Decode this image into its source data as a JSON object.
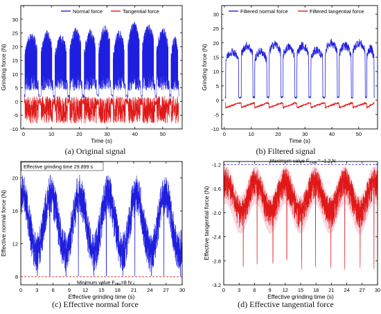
{
  "captions": {
    "a": "(a) Original signal",
    "b": "(b) Filtered signal",
    "c": "(c) Effective normal force",
    "d": "(d) Effective tangential force"
  },
  "colors": {
    "normal": "#1f1fe0",
    "tangential": "#e01818",
    "reference_line": "#d23a3a",
    "reference_line_d": "#3535d8",
    "frame": "#000000"
  },
  "chart_data": [
    {
      "id": "a",
      "type": "line",
      "title": "",
      "xlabel": "Time (s)",
      "ylabel": "Grinding force (N)",
      "xlim": [
        -1,
        57
      ],
      "ylim": [
        -10,
        35
      ],
      "xticks": [
        0,
        10,
        20,
        30,
        40,
        50
      ],
      "yticks": [
        -10,
        -5,
        0,
        5,
        10,
        15,
        20,
        25,
        30
      ],
      "legend": "top",
      "series": [
        {
          "name": "Normal force",
          "style": "normal",
          "baseline": 2,
          "cycles": [
            {
              "start": 0.5,
              "end": 5.3,
              "peak": 25.5
            },
            {
              "start": 6.3,
              "end": 10.6,
              "peak": 26
            },
            {
              "start": 11.3,
              "end": 15.8,
              "peak": 24.5
            },
            {
              "start": 16.6,
              "end": 21.0,
              "peak": 27
            },
            {
              "start": 21.8,
              "end": 26.2,
              "peak": 26.5
            },
            {
              "start": 27.0,
              "end": 31.4,
              "peak": 28
            },
            {
              "start": 32.2,
              "end": 36.6,
              "peak": 26
            },
            {
              "start": 37.5,
              "end": 42.0,
              "peak": 29.5
            },
            {
              "start": 42.7,
              "end": 47.2,
              "peak": 28.5
            },
            {
              "start": 47.8,
              "end": 52.4,
              "peak": 27
            },
            {
              "start": 53.0,
              "end": 55.7,
              "peak": 24
            }
          ],
          "cycle_low": 4
        },
        {
          "name": "Tangential force",
          "style": "tangential",
          "baseline": -1,
          "band": [
            -8,
            2
          ]
        }
      ]
    },
    {
      "id": "b",
      "type": "line",
      "title": "",
      "xlabel": "Time (s)",
      "ylabel": "Grinding force (N)",
      "xlim": [
        -1,
        57
      ],
      "ylim": [
        -10,
        33
      ],
      "xticks": [
        0,
        10,
        20,
        30,
        40,
        50
      ],
      "yticks": [
        -10,
        -5,
        0,
        5,
        10,
        15,
        20,
        25,
        30
      ],
      "legend": "top",
      "series": [
        {
          "name": "Filtered normal force",
          "style": "normal",
          "baseline": 1,
          "cycles": [
            {
              "start": 0.5,
              "end": 5.3,
              "peak": 17
            },
            {
              "start": 6.3,
              "end": 10.6,
              "peak": 19
            },
            {
              "start": 11.3,
              "end": 15.8,
              "peak": 17
            },
            {
              "start": 16.6,
              "end": 21.0,
              "peak": 19.5
            },
            {
              "start": 21.8,
              "end": 26.2,
              "peak": 18.5
            },
            {
              "start": 27.0,
              "end": 31.4,
              "peak": 19
            },
            {
              "start": 32.2,
              "end": 36.6,
              "peak": 17.5
            },
            {
              "start": 37.5,
              "end": 42.0,
              "peak": 20
            },
            {
              "start": 42.7,
              "end": 47.2,
              "peak": 19
            },
            {
              "start": 47.8,
              "end": 52.4,
              "peak": 20
            },
            {
              "start": 53.0,
              "end": 55.7,
              "peak": 18
            }
          ],
          "cycle_low": 10
        },
        {
          "name": "Filtered tangential force",
          "style": "tangential",
          "baseline": -1,
          "band": [
            -3,
            0
          ]
        }
      ]
    },
    {
      "id": "c",
      "type": "line",
      "title": "",
      "xlabel": "Effective grinding time (s)",
      "ylabel": "Effective normal force (N)",
      "xlim": [
        0,
        30
      ],
      "ylim": [
        7,
        22
      ],
      "xticks": [
        0,
        3,
        6,
        9,
        12,
        15,
        18,
        21,
        24,
        27,
        30
      ],
      "yticks": [
        8,
        12,
        16,
        20
      ],
      "series": [
        {
          "name": "",
          "style": "normal",
          "period": 5.3,
          "mid": 14.5,
          "amp": 3.5,
          "noise": 2.5,
          "dips": [
            3.1,
            5.4,
            8.4,
            10.7,
            13.6,
            15.9,
            19.0,
            21.2,
            24.3,
            26.6,
            29.7
          ]
        }
      ],
      "annotations": [
        {
          "text": "Effective grinding time 29.899 s"
        },
        {
          "text": "Minimum value F",
          "sub": "min",
          "suffix": "=8 N",
          "y": 8
        }
      ]
    },
    {
      "id": "d",
      "type": "line",
      "title": "",
      "xlabel": "Effective grinding time (s)",
      "ylabel": "Effective tangential force (N)",
      "xlim": [
        0,
        30
      ],
      "ylim": [
        -3.2,
        -1.15
      ],
      "xticks": [
        0,
        3,
        6,
        9,
        12,
        15,
        18,
        21,
        24,
        27,
        30
      ],
      "yticks": [
        -3.2,
        -2.8,
        -2.4,
        -2.0,
        -1.6,
        -1.2
      ],
      "series": [
        {
          "name": "",
          "style": "tangential",
          "period": 5.8,
          "mid": -1.6,
          "amp": 0.25,
          "noise": 0.25,
          "spikes": [
            3.8,
            6.5,
            9.6,
            12.3,
            15.2,
            17.9,
            20.9,
            23.6,
            26.6,
            29.3
          ]
        }
      ],
      "annotations": [
        {
          "text": "Maximum value F",
          "sub": "max",
          "suffix": " = -1.2 N",
          "y": -1.2
        }
      ]
    }
  ]
}
